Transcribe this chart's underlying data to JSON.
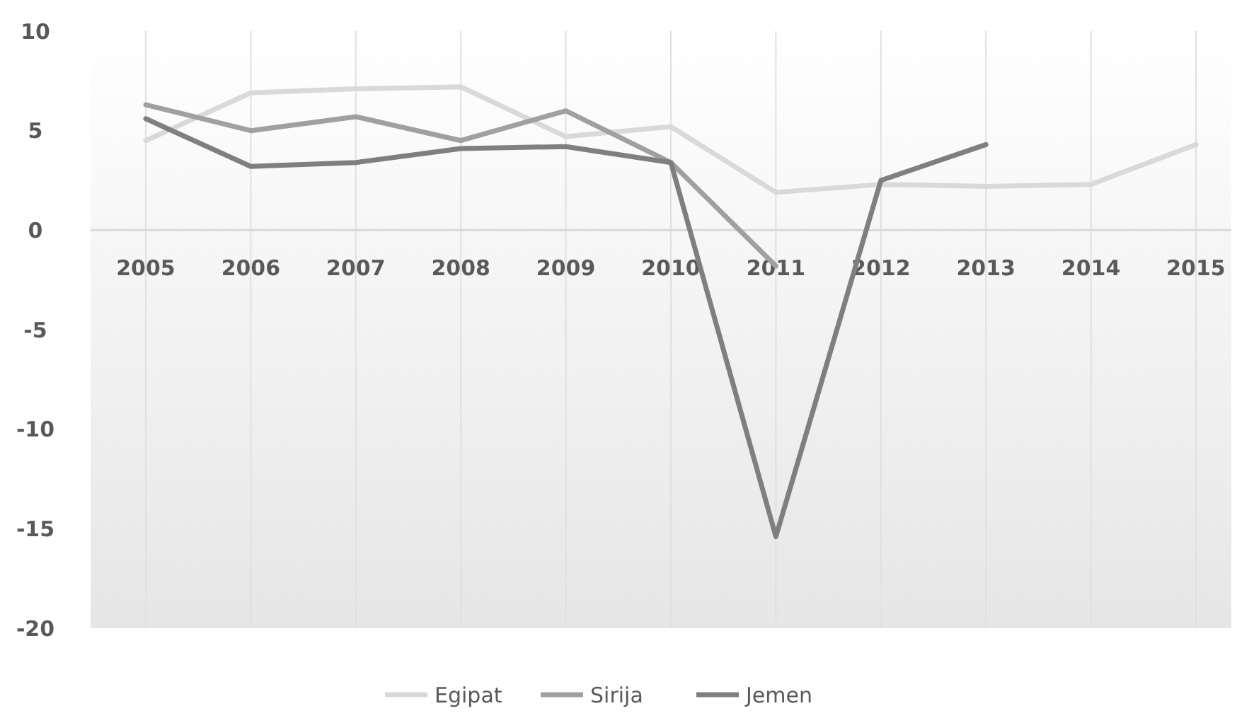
{
  "chart_data": {
    "type": "line",
    "categories": [
      "2005",
      "2006",
      "2007",
      "2008",
      "2009",
      "2010",
      "2011",
      "2012",
      "2013",
      "2014",
      "2015"
    ],
    "series": [
      {
        "name": "Egipat",
        "color": "#d9d9d9",
        "values": [
          4.5,
          6.9,
          7.1,
          7.2,
          4.7,
          5.2,
          1.9,
          2.3,
          2.2,
          2.3,
          4.3
        ]
      },
      {
        "name": "Sirija",
        "color": "#a0a0a0",
        "values": [
          6.3,
          5.0,
          5.7,
          4.5,
          6.0,
          3.4,
          -1.8,
          null,
          null,
          null,
          null
        ]
      },
      {
        "name": "Jemen",
        "color": "#7f7f7f",
        "values": [
          5.6,
          3.2,
          3.4,
          4.1,
          4.2,
          3.4,
          -15.4,
          2.5,
          4.3,
          null,
          null
        ]
      }
    ],
    "ylim": [
      -20,
      10
    ],
    "yticks": [
      -20,
      -15,
      -10,
      -5,
      0,
      5,
      10
    ],
    "grid": "x",
    "legend": "bottom",
    "marker": "none",
    "line_style": "solid"
  }
}
